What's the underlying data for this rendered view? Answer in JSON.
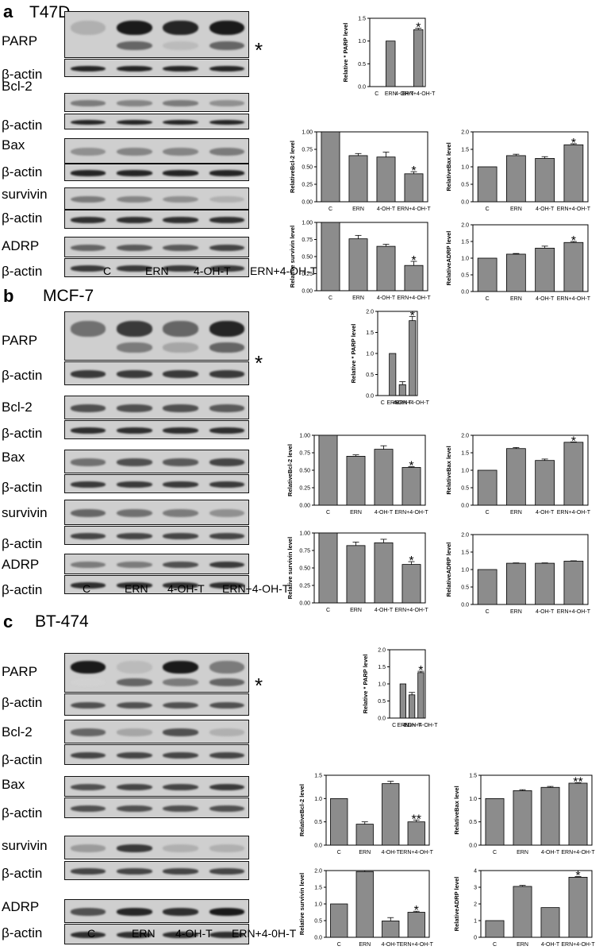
{
  "panels": [
    {
      "letter": "a",
      "cell_line": "T47D",
      "lanes": [
        "C",
        "ERN",
        "4-OH-T",
        "ERN+4-OH-T"
      ],
      "blots": [
        {
          "label": "PARP",
          "loading_label": "β-actin",
          "marker": "*",
          "band_intensity": [
            0.25,
            0.95,
            0.9,
            0.95
          ],
          "second_band": [
            0,
            0.6,
            0.2,
            0.6
          ],
          "actin_intensity": [
            0.9,
            0.9,
            0.9,
            0.9
          ]
        },
        {
          "label": "Bcl-2",
          "loading_label": "β-actin",
          "band_intensity": [
            0.5,
            0.45,
            0.5,
            0.4
          ],
          "actin_intensity": [
            0.9,
            0.9,
            0.9,
            0.9
          ]
        },
        {
          "label": "Bax",
          "loading_label": "β-actin",
          "band_intensity": [
            0.4,
            0.45,
            0.45,
            0.5
          ],
          "actin_intensity": [
            0.9,
            0.9,
            0.9,
            0.9
          ]
        },
        {
          "label": "survivin",
          "loading_label": "β-actin",
          "band_intensity": [
            0.5,
            0.45,
            0.4,
            0.25
          ],
          "actin_intensity": [
            0.85,
            0.85,
            0.85,
            0.85
          ]
        },
        {
          "label": "ADRP",
          "loading_label": "β-actin",
          "band_intensity": [
            0.6,
            0.65,
            0.65,
            0.75
          ],
          "actin_intensity": [
            0.8,
            0.8,
            0.8,
            0.8
          ]
        }
      ],
      "charts": [
        {
          "type": "bar",
          "ylabel": "Relative * PARP level",
          "categories": [
            "C",
            "ERN",
            "4-OH-T",
            "ERN+4-OH-T"
          ],
          "values": [
            0,
            1.0,
            0,
            1.25
          ],
          "errors": [
            0,
            0,
            0,
            0.03
          ],
          "ylim": [
            0,
            1.5
          ],
          "yticks": [
            "0.0",
            "0.5",
            "1.0",
            "1.5"
          ],
          "ytick_values": [
            0,
            0.5,
            1.0,
            1.5
          ],
          "significance": [
            "",
            "",
            "",
            "*"
          ]
        },
        {
          "type": "bar",
          "ylabel": "RelativeBcl-2  level",
          "categories": [
            "C",
            "ERN",
            "4-OH-T",
            "ERN+4-OH-T"
          ],
          "values": [
            1.0,
            0.66,
            0.64,
            0.4
          ],
          "errors": [
            0,
            0.03,
            0.07,
            0.03
          ],
          "ylim": [
            0,
            1.0
          ],
          "yticks": [
            "0.00",
            "0.25",
            "0.50",
            "0.75",
            "1.00"
          ],
          "ytick_values": [
            0,
            0.25,
            0.5,
            0.75,
            1.0
          ],
          "significance": [
            "",
            "",
            "",
            "*"
          ]
        },
        {
          "type": "bar",
          "ylabel": "RelativeBax  level",
          "categories": [
            "C",
            "ERN",
            "4-OH-T",
            "ERN+4-OH-T"
          ],
          "values": [
            1.0,
            1.32,
            1.24,
            1.63
          ],
          "errors": [
            0,
            0.04,
            0.05,
            0.03
          ],
          "ylim": [
            0,
            2.0
          ],
          "yticks": [
            "0.0",
            "0.5",
            "1.0",
            "1.5",
            "2.0"
          ],
          "ytick_values": [
            0,
            0.5,
            1.0,
            1.5,
            2.0
          ],
          "significance": [
            "",
            "",
            "",
            "*"
          ]
        },
        {
          "type": "bar",
          "ylabel": "Relative survivin  level",
          "categories": [
            "C",
            "ERN",
            "4-OH-T",
            "ERN+4-OH-T"
          ],
          "values": [
            1.0,
            0.76,
            0.65,
            0.37
          ],
          "errors": [
            0,
            0.05,
            0.03,
            0.06
          ],
          "ylim": [
            0,
            1.0
          ],
          "yticks": [
            "0.00",
            "0.25",
            "0.50",
            "0.75",
            "1.00"
          ],
          "ytick_values": [
            0,
            0.25,
            0.5,
            0.75,
            1.0
          ],
          "significance": [
            "",
            "",
            "",
            "*"
          ]
        },
        {
          "type": "bar",
          "ylabel": "RelativeADRP  level",
          "categories": [
            "C",
            "ERN",
            "4-OH-T",
            "ERN+4-OH-T"
          ],
          "values": [
            1.0,
            1.12,
            1.3,
            1.47
          ],
          "errors": [
            0,
            0.02,
            0.06,
            0.03
          ],
          "ylim": [
            0,
            2.0
          ],
          "yticks": [
            "0.0",
            "0.5",
            "1.0",
            "1.5",
            "2.0"
          ],
          "ytick_values": [
            0,
            0.5,
            1.0,
            1.5,
            2.0
          ],
          "significance": [
            "",
            "",
            "",
            "*"
          ]
        }
      ]
    },
    {
      "letter": "b",
      "cell_line": "MCF-7",
      "lanes": [
        "C",
        "ERN",
        "4-OH-T",
        "ERN+4-OH-T"
      ],
      "blots": [
        {
          "label": "PARP",
          "loading_label": "β-actin",
          "marker": "*",
          "band_intensity": [
            0.55,
            0.8,
            0.6,
            0.9
          ],
          "second_band": [
            0,
            0.5,
            0.3,
            0.6
          ],
          "actin_intensity": [
            0.8,
            0.8,
            0.8,
            0.8
          ]
        },
        {
          "label": "Bcl-2",
          "loading_label": "β-actin",
          "band_intensity": [
            0.7,
            0.7,
            0.7,
            0.65
          ],
          "actin_intensity": [
            0.85,
            0.85,
            0.85,
            0.85
          ]
        },
        {
          "label": "Bax",
          "loading_label": "β-actin",
          "band_intensity": [
            0.55,
            0.7,
            0.65,
            0.75
          ],
          "actin_intensity": [
            0.8,
            0.8,
            0.8,
            0.8
          ]
        },
        {
          "label": "survivin",
          "loading_label": "β-actin",
          "band_intensity": [
            0.6,
            0.55,
            0.5,
            0.4
          ],
          "actin_intensity": [
            0.75,
            0.75,
            0.75,
            0.75
          ]
        },
        {
          "label": "ADRP",
          "loading_label": "β-actin",
          "band_intensity": [
            0.5,
            0.5,
            0.7,
            0.8
          ],
          "actin_intensity": [
            0.85,
            0.85,
            0.85,
            0.85
          ]
        }
      ],
      "charts": [
        {
          "type": "bar",
          "ylabel": "Relative * PARP level",
          "categories": [
            "C",
            "ERN",
            "4-OH-T",
            "ERN+4-OH-T"
          ],
          "values": [
            0,
            1.0,
            0.26,
            1.78
          ],
          "errors": [
            0,
            0,
            0.07,
            0.1
          ],
          "ylim": [
            0,
            2.0
          ],
          "yticks": [
            "0.0",
            "0.5",
            "1.0",
            "1.5",
            "2.0"
          ],
          "ytick_values": [
            0,
            0.5,
            1.0,
            1.5,
            2.0
          ],
          "significance": [
            "",
            "",
            "",
            "*"
          ]
        },
        {
          "type": "bar",
          "ylabel": "RelativeBcl-2  level",
          "categories": [
            "C",
            "ERN",
            "4-OH-T",
            "ERN+4-OH-T"
          ],
          "values": [
            1.0,
            0.7,
            0.8,
            0.54
          ],
          "errors": [
            0,
            0.02,
            0.05,
            0.01
          ],
          "ylim": [
            0,
            1.0
          ],
          "yticks": [
            "0.00",
            "0.25",
            "0.50",
            "0.75",
            "1.00"
          ],
          "ytick_values": [
            0,
            0.25,
            0.5,
            0.75,
            1.0
          ],
          "significance": [
            "",
            "",
            "",
            "*"
          ]
        },
        {
          "type": "bar",
          "ylabel": "RelativeBax  level",
          "categories": [
            "C",
            "ERN",
            "4-OH-T",
            "ERN+4-OH-T"
          ],
          "values": [
            1.0,
            1.62,
            1.28,
            1.8
          ],
          "errors": [
            0,
            0.03,
            0.04,
            0.01
          ],
          "ylim": [
            0,
            2.0
          ],
          "yticks": [
            "0.0",
            "0.5",
            "1.0",
            "1.5",
            "2.0"
          ],
          "ytick_values": [
            0,
            0.5,
            1.0,
            1.5,
            2.0
          ],
          "significance": [
            "",
            "",
            "",
            "*"
          ]
        },
        {
          "type": "bar",
          "ylabel": "Relative survivin  level",
          "categories": [
            "C",
            "ERN",
            "4-OH-T",
            "ERN+4-OH-T"
          ],
          "values": [
            1.0,
            0.82,
            0.86,
            0.55
          ],
          "errors": [
            0,
            0.05,
            0.05,
            0.04
          ],
          "ylim": [
            0,
            1.0
          ],
          "yticks": [
            "0.00",
            "0.25",
            "0.50",
            "0.75",
            "1.00"
          ],
          "ytick_values": [
            0,
            0.25,
            0.5,
            0.75,
            1.0
          ],
          "significance": [
            "",
            "",
            "",
            "*"
          ]
        },
        {
          "type": "bar",
          "ylabel": "RelativeADRP  level",
          "categories": [
            "C",
            "ERN",
            "4-OH-T",
            "ERN+4-OH-T"
          ],
          "values": [
            1.0,
            1.18,
            1.18,
            1.24
          ],
          "errors": [
            0,
            0.01,
            0.01,
            0.01
          ],
          "ylim": [
            0,
            2.0
          ],
          "yticks": [
            "0.0",
            "0.5",
            "1.0",
            "1.5",
            "2.0"
          ],
          "ytick_values": [
            0,
            0.5,
            1.0,
            1.5,
            2.0
          ],
          "significance": [
            "",
            "",
            "",
            ""
          ]
        }
      ]
    },
    {
      "letter": "c",
      "cell_line": "BT-474",
      "lanes": [
        "C",
        "ERN",
        "4-OH-T",
        "ERN+4-0H-T"
      ],
      "blots": [
        {
          "label": "PARP",
          "loading_label": "β-actin",
          "marker": "*",
          "band_intensity": [
            0.95,
            0.2,
            0.95,
            0.5
          ],
          "second_band": [
            0.1,
            0.6,
            0.5,
            0.6
          ],
          "actin_intensity": [
            0.7,
            0.7,
            0.7,
            0.7
          ]
        },
        {
          "label": "Bcl-2",
          "loading_label": "β-actin",
          "band_intensity": [
            0.6,
            0.3,
            0.7,
            0.25
          ],
          "actin_intensity": [
            0.75,
            0.75,
            0.75,
            0.75
          ]
        },
        {
          "label": "Bax",
          "loading_label": "β-actin",
          "band_intensity": [
            0.7,
            0.75,
            0.75,
            0.8
          ],
          "actin_intensity": [
            0.7,
            0.7,
            0.7,
            0.7
          ]
        },
        {
          "label": "survivin",
          "loading_label": "β-actin",
          "band_intensity": [
            0.35,
            0.8,
            0.25,
            0.25
          ],
          "actin_intensity": [
            0.75,
            0.75,
            0.75,
            0.75
          ]
        },
        {
          "label": "ADRP",
          "loading_label": "β-actin",
          "band_intensity": [
            0.7,
            0.9,
            0.85,
            0.95
          ],
          "actin_intensity": [
            0.85,
            0.85,
            0.85,
            0.85
          ]
        }
      ],
      "charts": [
        {
          "type": "bar",
          "ylabel": "Relative * PARP level",
          "categories": [
            "C",
            "ERN",
            "4-OH-T",
            "ERN+4-OH-T"
          ],
          "values": [
            0,
            1.0,
            0.68,
            1.33
          ],
          "errors": [
            0,
            0,
            0.07,
            0.04
          ],
          "ylim": [
            0,
            2.0
          ],
          "yticks": [
            "0.0",
            "0.5",
            "1.0",
            "1.5",
            "2.0"
          ],
          "ytick_values": [
            0,
            0.5,
            1.0,
            1.5,
            2.0
          ],
          "significance": [
            "",
            "",
            "",
            "*"
          ]
        },
        {
          "type": "bar",
          "ylabel": "RelativeBcl-2  level",
          "categories": [
            "C",
            "ERN",
            "4-OH-T",
            "ERN+4-OH-T"
          ],
          "values": [
            1.0,
            0.45,
            1.32,
            0.5
          ],
          "errors": [
            0,
            0.05,
            0.05,
            0.04
          ],
          "ylim": [
            0,
            1.5
          ],
          "yticks": [
            "0.0",
            "0.5",
            "1.0",
            "1.5"
          ],
          "ytick_values": [
            0,
            0.5,
            1.0,
            1.5
          ],
          "significance": [
            "",
            "",
            "",
            "**"
          ]
        },
        {
          "type": "bar",
          "ylabel": "RelativeBax  level",
          "categories": [
            "C",
            "ERN",
            "4-OH-T",
            "ERN+4-OH-T"
          ],
          "values": [
            1.0,
            1.17,
            1.24,
            1.33
          ],
          "errors": [
            0,
            0.02,
            0.02,
            0.01
          ],
          "ylim": [
            0,
            1.5
          ],
          "yticks": [
            "0.0",
            "0.5",
            "1.0",
            "1.5"
          ],
          "ytick_values": [
            0,
            0.5,
            1.0,
            1.5
          ],
          "significance": [
            "",
            "",
            "",
            "**"
          ]
        },
        {
          "type": "bar",
          "ylabel": "Relative survivin  level",
          "categories": [
            "C",
            "ERN",
            "4-OH-T",
            "ERN+4-OH-T"
          ],
          "values": [
            1.0,
            1.97,
            0.49,
            0.75
          ],
          "errors": [
            0,
            0.03,
            0.1,
            0.03
          ],
          "ylim": [
            0,
            2.0
          ],
          "yticks": [
            "0.0",
            "0.5",
            "1.0",
            "1.5",
            "2.0"
          ],
          "ytick_values": [
            0,
            0.5,
            1.0,
            1.5,
            2.0
          ],
          "significance": [
            "",
            "",
            "",
            "*"
          ]
        },
        {
          "type": "bar",
          "ylabel": "RelativeADRP  level",
          "categories": [
            "C",
            "ERN",
            "4-OH-T",
            "ERN+4-OH-T"
          ],
          "values": [
            1.0,
            3.05,
            1.78,
            3.6
          ],
          "errors": [
            0,
            0.06,
            0,
            0.04
          ],
          "ylim": [
            0,
            4
          ],
          "yticks": [
            "0",
            "1",
            "2",
            "3",
            "4"
          ],
          "ytick_values": [
            0,
            1,
            2,
            3,
            4
          ],
          "significance": [
            "",
            "",
            "",
            "*"
          ]
        }
      ]
    }
  ],
  "style": {
    "bar_color": "#8c8c8c",
    "blot_background": "#cfcfcf",
    "band_color": "#1a1a1a"
  }
}
